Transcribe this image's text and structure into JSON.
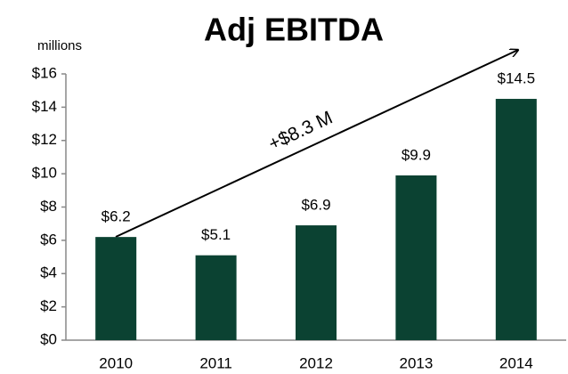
{
  "chart_data": {
    "type": "bar",
    "title": "Adj EBITDA",
    "y_label": "millions",
    "annotation": "+$8.3 M",
    "categories": [
      "2010",
      "2011",
      "2012",
      "2013",
      "2014"
    ],
    "values": [
      6.2,
      5.1,
      6.9,
      9.9,
      14.5
    ],
    "value_labels": [
      "$6.2",
      "$5.1",
      "$6.9",
      "$9.9",
      "$14.5"
    ],
    "color": "#0b4232",
    "ylim": [
      0,
      16
    ],
    "yticks": [
      {
        "value": 0,
        "label": "$0"
      },
      {
        "value": 2,
        "label": "$2"
      },
      {
        "value": 4,
        "label": "$4"
      },
      {
        "value": 6,
        "label": "$6"
      },
      {
        "value": 8,
        "label": "$8"
      },
      {
        "value": 10,
        "label": "$10"
      },
      {
        "value": 12,
        "label": "$12"
      },
      {
        "value": 14,
        "label": "$14"
      },
      {
        "value": 16,
        "label": "$16"
      }
    ],
    "grid": false
  }
}
